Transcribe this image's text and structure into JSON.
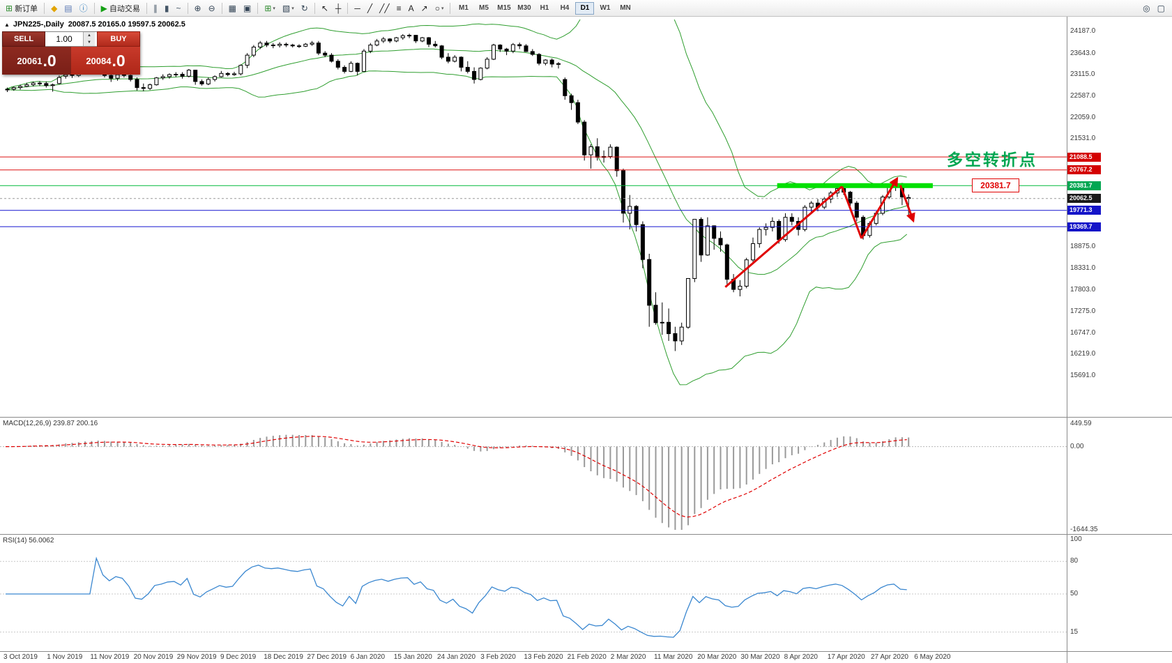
{
  "toolbar": {
    "groups": [
      {
        "items": [
          {
            "name": "new-order",
            "glyph": "⊞",
            "color": "#2e8b2e",
            "label": "新订单"
          }
        ]
      },
      {
        "items": [
          {
            "name": "market-watch",
            "glyph": "◆",
            "color": "#e2a400"
          },
          {
            "name": "profiles",
            "glyph": "▤",
            "color": "#5b79b5"
          },
          {
            "name": "info",
            "glyph": "ⓘ",
            "color": "#2e7dbe"
          }
        ]
      },
      {
        "items": [
          {
            "name": "auto-trading",
            "glyph": "▶",
            "color": "#14a014",
            "label": "自动交易"
          }
        ]
      },
      {
        "items": [
          {
            "name": "bar-chart",
            "glyph": "∥",
            "color": "#445566"
          },
          {
            "name": "candlestick-chart",
            "glyph": "▮",
            "color": "#445566"
          },
          {
            "name": "line-chart",
            "glyph": "~",
            "color": "#445566"
          }
        ]
      },
      {
        "items": [
          {
            "name": "zoom-in",
            "glyph": "⊕",
            "color": "#334455"
          },
          {
            "name": "zoom-out",
            "glyph": "⊖",
            "color": "#334455"
          }
        ]
      },
      {
        "items": [
          {
            "name": "tile-windows",
            "glyph": "▦",
            "color": "#334455"
          },
          {
            "name": "cascade-windows",
            "glyph": "▣",
            "color": "#334455"
          }
        ]
      },
      {
        "items": [
          {
            "name": "new-chart",
            "glyph": "⊞",
            "color": "#2e8b2e",
            "caret": true
          },
          {
            "name": "chart-templates",
            "glyph": "▧",
            "color": "#334455",
            "caret": true
          },
          {
            "name": "refresh",
            "glyph": "↻",
            "color": "#334455"
          }
        ]
      },
      {
        "items": [
          {
            "name": "cursor",
            "glyph": "↖",
            "color": "#222222"
          },
          {
            "name": "crosshair",
            "glyph": "┼",
            "color": "#222222"
          }
        ]
      },
      {
        "items": [
          {
            "name": "horizontal-line",
            "glyph": "─",
            "color": "#222222"
          },
          {
            "name": "trendline",
            "glyph": "╱",
            "color": "#222222"
          },
          {
            "name": "channel",
            "glyph": "╱╱",
            "color": "#222222"
          },
          {
            "name": "fibonacci",
            "glyph": "≡",
            "color": "#222222"
          },
          {
            "name": "text-tool",
            "glyph": "A",
            "color": "#222222"
          },
          {
            "name": "arrow-tool",
            "glyph": "↗",
            "color": "#222222"
          },
          {
            "name": "shapes",
            "glyph": "○",
            "color": "#222222",
            "caret": true
          }
        ]
      }
    ],
    "timeframes": {
      "items": [
        "M1",
        "M5",
        "M15",
        "M30",
        "H1",
        "H4",
        "D1",
        "W1",
        "MN"
      ],
      "active": "D1"
    },
    "right_items": [
      {
        "name": "search",
        "glyph": "◎",
        "color": "#334455"
      },
      {
        "name": "layout",
        "glyph": "▢",
        "color": "#334455"
      }
    ]
  },
  "chart": {
    "collapse_icon": "▲",
    "title": "JPN225-,Daily",
    "ohlc": "20087.5 20165.0 19597.5 20062.5"
  },
  "order_panel": {
    "sell_label": "SELL",
    "buy_label": "BUY",
    "volume": "1.00",
    "sell_price": "20061",
    "sell_price_fraction": ".0",
    "buy_price": "20084",
    "buy_price_fraction": ".0"
  },
  "annotations": {
    "turning_point": "多空转折点",
    "level_callout": "20381.7"
  },
  "macd_panel": {
    "label": "MACD(12,26,9) 239.87 200.16",
    "axis": [
      "449.59",
      "0.00",
      "-1644.35"
    ],
    "max": 449.59,
    "min": -1644.35
  },
  "rsi_panel": {
    "label": "RSI(14) 56.0062",
    "axis": [
      "100",
      "80",
      "50",
      "15"
    ]
  },
  "price_axis": {
    "scale": [
      "24187.0",
      "23643.0",
      "23115.0",
      "22587.0",
      "22059.0",
      "21531.0",
      "18875.0",
      "18331.0",
      "17803.0",
      "17275.0",
      "16747.0",
      "16219.0",
      "15691.0"
    ],
    "tags": [
      {
        "text": "21088.5",
        "color": "#d40000"
      },
      {
        "text": "20767.2",
        "color": "#d40000"
      },
      {
        "text": "20381.7",
        "color": "#00a651"
      },
      {
        "text": "20062.5",
        "color": "#1a1a1a"
      },
      {
        "text": "19771.3",
        "color": "#1414c8"
      },
      {
        "text": "19369.7",
        "color": "#1414c8"
      }
    ]
  },
  "chart_data": {
    "type": "candlestick",
    "symbol": "JPN225-",
    "period": "Daily",
    "ohlc_current": {
      "open": 20087.5,
      "high": 20165.0,
      "low": 19597.5,
      "close": 20062.5
    },
    "bid": 20061.0,
    "ask": 20084.0,
    "y_axis": {
      "top_label": 24187.0,
      "bottom_label": 15691.0,
      "step": 528
    },
    "indicators": {
      "bollinger": {
        "period": 20,
        "deviation": 2,
        "color": "#2f9e2f"
      },
      "macd": {
        "fast": 12,
        "slow": 26,
        "signal": 9,
        "main_value": 239.87,
        "signal_value": 200.16,
        "histogram_color": "#9a9a9a",
        "signal_color": "#e00000"
      },
      "rsi": {
        "period": 14,
        "value": 56.0062,
        "color": "#3a87d0"
      }
    },
    "levels": [
      {
        "price": 21088.5,
        "color": "#dd1111"
      },
      {
        "price": 20767.2,
        "color": "#dd1111"
      },
      {
        "price": 20381.7,
        "color": "#00b93c"
      },
      {
        "price": 19771.3,
        "color": "#1515d0"
      },
      {
        "price": 19369.7,
        "color": "#1515d0"
      }
    ],
    "current_price_line": 20062.5,
    "highlight": {
      "price": 20381.7,
      "from_index": 119,
      "to_index": 143,
      "color": "#00e000"
    },
    "trend_lines": [
      {
        "from": {
          "index": 111,
          "price": 17880
        },
        "to": {
          "index": 129,
          "price": 20360
        },
        "arrow": false
      },
      {
        "from": {
          "index": 129,
          "price": 20360
        },
        "to": {
          "index": 132,
          "price": 19080
        },
        "arrow": false
      },
      {
        "from": {
          "index": 132,
          "price": 19080
        },
        "to": {
          "index": 137.5,
          "price": 20560
        },
        "arrow": true
      },
      {
        "from": {
          "index": 138,
          "price": 20390
        },
        "to": {
          "index": 140,
          "price": 19510
        },
        "arrow": true
      }
    ],
    "date_labels": [
      "3 Oct 2019",
      "1 Nov 2019",
      "11 Nov 2019",
      "20 Nov 2019",
      "29 Nov 2019",
      "9 Dec 2019",
      "18 Dec 2019",
      "27 Dec 2019",
      "6 Jan 2020",
      "15 Jan 2020",
      "24 Jan 2020",
      "3 Feb 2020",
      "13 Feb 2020",
      "21 Feb 2020",
      "2 Mar 2020",
      "11 Mar 2020",
      "20 Mar 2020",
      "30 Mar 2020",
      "8 Apr 2020",
      "17 Apr 2020",
      "27 Apr 2020",
      "6 May 2020"
    ],
    "candles": [
      [
        22750,
        22800,
        22690,
        22760
      ],
      [
        22760,
        22830,
        22720,
        22800
      ],
      [
        22800,
        22870,
        22750,
        22830
      ],
      [
        22830,
        22920,
        22810,
        22870
      ],
      [
        22870,
        22950,
        22830,
        22910
      ],
      [
        22910,
        22960,
        22840,
        22900
      ],
      [
        22900,
        22950,
        22800,
        22850
      ],
      [
        22850,
        22900,
        22700,
        22870
      ],
      [
        22900,
        23100,
        22880,
        23050
      ],
      [
        23080,
        23180,
        23020,
        23120
      ],
      [
        23120,
        23160,
        23040,
        23100
      ],
      [
        23100,
        23230,
        23060,
        23180
      ],
      [
        23180,
        23280,
        23130,
        23250
      ],
      [
        23250,
        23290,
        23160,
        23200
      ],
      [
        23200,
        23280,
        23150,
        23260
      ],
      [
        23260,
        23270,
        23050,
        23100
      ],
      [
        23100,
        23150,
        22940,
        23030
      ],
      [
        23030,
        23160,
        22970,
        23120
      ],
      [
        23120,
        23190,
        23050,
        23100
      ],
      [
        23100,
        23160,
        22950,
        23000
      ],
      [
        23000,
        23050,
        22730,
        22800
      ],
      [
        22800,
        22900,
        22710,
        22780
      ],
      [
        22780,
        22900,
        22740,
        22870
      ],
      [
        22870,
        23060,
        22850,
        23040
      ],
      [
        23040,
        23130,
        22990,
        23070
      ],
      [
        23070,
        23150,
        23020,
        23120
      ],
      [
        23120,
        23180,
        23060,
        23130
      ],
      [
        23130,
        23180,
        23020,
        23080
      ],
      [
        23080,
        23260,
        23050,
        23230
      ],
      [
        23230,
        23240,
        22870,
        22950
      ],
      [
        22950,
        23000,
        22850,
        22890
      ],
      [
        22890,
        23050,
        22860,
        23000
      ],
      [
        23000,
        23100,
        22950,
        23070
      ],
      [
        23070,
        23210,
        23050,
        23150
      ],
      [
        23150,
        23180,
        23080,
        23120
      ],
      [
        23120,
        23190,
        23090,
        23140
      ],
      [
        23140,
        23370,
        23100,
        23350
      ],
      [
        23350,
        23650,
        23280,
        23600
      ],
      [
        23600,
        23850,
        23550,
        23800
      ],
      [
        23800,
        23950,
        23750,
        23900
      ],
      [
        23900,
        23950,
        23800,
        23850
      ],
      [
        23850,
        23900,
        23770,
        23840
      ],
      [
        23840,
        23920,
        23790,
        23870
      ],
      [
        23870,
        23910,
        23800,
        23850
      ],
      [
        23850,
        23880,
        23790,
        23830
      ],
      [
        23830,
        23870,
        23780,
        23820
      ],
      [
        23820,
        23900,
        23800,
        23870
      ],
      [
        23870,
        23950,
        23830,
        23900
      ],
      [
        23900,
        23950,
        23600,
        23650
      ],
      [
        23650,
        23700,
        23550,
        23600
      ],
      [
        23600,
        23650,
        23420,
        23450
      ],
      [
        23450,
        23500,
        23250,
        23300
      ],
      [
        23300,
        23350,
        23150,
        23200
      ],
      [
        23200,
        23450,
        23180,
        23400
      ],
      [
        23400,
        23420,
        23100,
        23200
      ],
      [
        23200,
        23750,
        23200,
        23700
      ],
      [
        23700,
        23900,
        23650,
        23850
      ],
      [
        23850,
        24000,
        23820,
        23950
      ],
      [
        23950,
        24050,
        23900,
        24000
      ],
      [
        24000,
        24020,
        23900,
        23950
      ],
      [
        23950,
        24050,
        23920,
        24030
      ],
      [
        24030,
        24120,
        23980,
        24080
      ],
      [
        24080,
        24130,
        24020,
        24090
      ],
      [
        24090,
        24100,
        23900,
        23950
      ],
      [
        23950,
        24050,
        23920,
        24030
      ],
      [
        24030,
        24050,
        23800,
        23870
      ],
      [
        23870,
        23950,
        23790,
        23830
      ],
      [
        23830,
        23850,
        23500,
        23550
      ],
      [
        23550,
        23650,
        23400,
        23450
      ],
      [
        23450,
        23600,
        23420,
        23550
      ],
      [
        23550,
        23570,
        23200,
        23300
      ],
      [
        23300,
        23450,
        23150,
        23200
      ],
      [
        23200,
        23300,
        22900,
        23000
      ],
      [
        23000,
        23300,
        22980,
        23280
      ],
      [
        23280,
        23550,
        23250,
        23500
      ],
      [
        23500,
        23880,
        23480,
        23850
      ],
      [
        23850,
        23870,
        23680,
        23750
      ],
      [
        23750,
        23780,
        23600,
        23700
      ],
      [
        23700,
        23900,
        23650,
        23860
      ],
      [
        23860,
        23910,
        23750,
        23830
      ],
      [
        23830,
        23870,
        23680,
        23690
      ],
      [
        23690,
        23750,
        23580,
        23620
      ],
      [
        23620,
        23650,
        23350,
        23400
      ],
      [
        23400,
        23500,
        23350,
        23480
      ],
      [
        23480,
        23520,
        23300,
        23380
      ],
      [
        23380,
        23430,
        23270,
        23390
      ],
      [
        23000,
        23050,
        22500,
        22600
      ],
      [
        22600,
        22650,
        22250,
        22430
      ],
      [
        22430,
        22500,
        21900,
        21950
      ],
      [
        21950,
        22000,
        21000,
        21140
      ],
      [
        21140,
        21400,
        20800,
        21340
      ],
      [
        21340,
        21550,
        21000,
        21080
      ],
      [
        21080,
        21250,
        20950,
        21100
      ],
      [
        21100,
        21400,
        21050,
        21330
      ],
      [
        21330,
        21350,
        20600,
        20750
      ],
      [
        20750,
        20800,
        19470,
        19700
      ],
      [
        19700,
        20150,
        19300,
        19870
      ],
      [
        19870,
        19900,
        19250,
        19420
      ],
      [
        19420,
        19500,
        18340,
        18560
      ],
      [
        18560,
        18700,
        16900,
        17430
      ],
      [
        17430,
        17750,
        16950,
        17000
      ],
      [
        17000,
        17500,
        16700,
        17010
      ],
      [
        17010,
        17350,
        16550,
        16730
      ],
      [
        16730,
        16900,
        16300,
        16550
      ],
      [
        16550,
        17000,
        16450,
        16890
      ],
      [
        16890,
        18100,
        16850,
        18090
      ],
      [
        18090,
        19550,
        18000,
        19550
      ],
      [
        19550,
        19600,
        18500,
        18670
      ],
      [
        18670,
        19600,
        18650,
        19390
      ],
      [
        19390,
        19400,
        18800,
        19080
      ],
      [
        19080,
        19250,
        18750,
        18920
      ],
      [
        18920,
        18950,
        17950,
        18070
      ],
      [
        18070,
        18200,
        17750,
        17820
      ],
      [
        17820,
        18050,
        17650,
        17900
      ],
      [
        17900,
        18600,
        17850,
        18550
      ],
      [
        18550,
        19100,
        18500,
        18950
      ],
      [
        18950,
        19350,
        18850,
        19300
      ],
      [
        19300,
        19450,
        19150,
        19350
      ],
      [
        19350,
        19600,
        19250,
        19500
      ],
      [
        19500,
        19550,
        18950,
        19050
      ],
      [
        19050,
        19700,
        19000,
        19600
      ],
      [
        19600,
        19700,
        19400,
        19500
      ],
      [
        19500,
        19600,
        19150,
        19300
      ],
      [
        19300,
        19900,
        19250,
        19850
      ],
      [
        19850,
        20000,
        19700,
        19950
      ],
      [
        19950,
        20050,
        19750,
        19850
      ],
      [
        19850,
        20100,
        19800,
        20050
      ],
      [
        20050,
        20250,
        19950,
        20200
      ],
      [
        20200,
        20390,
        20100,
        20310
      ],
      [
        20310,
        20380,
        20150,
        20220
      ],
      [
        20220,
        20250,
        19850,
        19950
      ],
      [
        19950,
        20000,
        19500,
        19600
      ],
      [
        19600,
        19650,
        19050,
        19150
      ],
      [
        19150,
        19500,
        19100,
        19450
      ],
      [
        19450,
        19750,
        19400,
        19700
      ],
      [
        19700,
        20150,
        19650,
        20100
      ],
      [
        20100,
        20400,
        20050,
        20350
      ],
      [
        20350,
        20540,
        20250,
        20430
      ],
      [
        20430,
        20450,
        19900,
        20100
      ],
      [
        20087.5,
        20165,
        19597.5,
        20062.5
      ]
    ]
  }
}
